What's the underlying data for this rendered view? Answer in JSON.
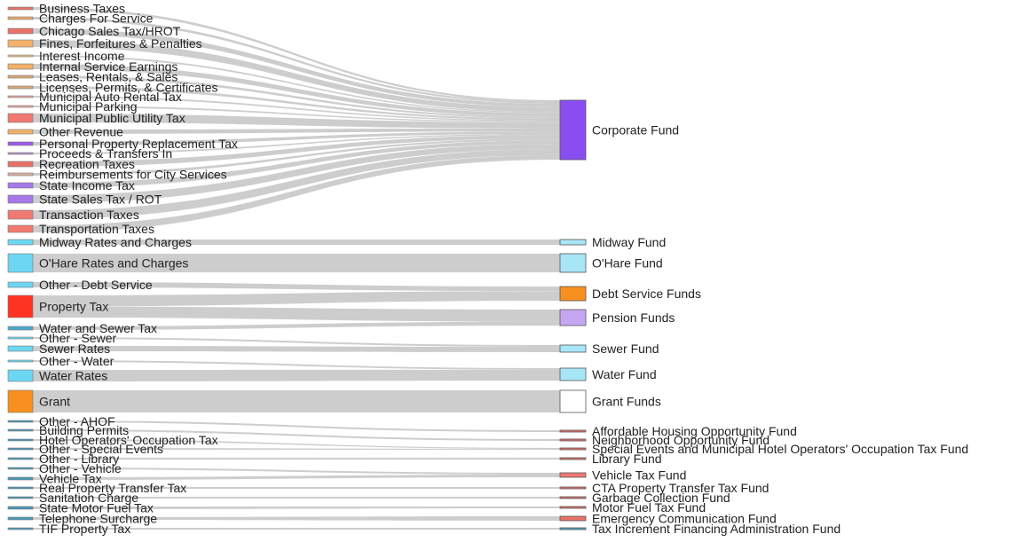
{
  "chart_data": {
    "type": "sankey",
    "title": "",
    "sources": [
      {
        "name": "Business Taxes",
        "color": "#e8726a"
      },
      {
        "name": "Charges For Service",
        "color": "#e8a86a"
      },
      {
        "name": "Chicago Sales Tax/HROT",
        "color": "#e8726a"
      },
      {
        "name": "Fines, Forfeitures & Penalties",
        "color": "#f2b26a"
      },
      {
        "name": "Interest Income",
        "color": "#e8c08a"
      },
      {
        "name": "Internal Service Earnings",
        "color": "#f2b26a"
      },
      {
        "name": "Leases, Rentals, & Sales",
        "color": "#d9a87a"
      },
      {
        "name": "Licenses, Permits, & Certificates",
        "color": "#d9a87a"
      },
      {
        "name": "Municipal Auto Rental Tax",
        "color": "#e8a8a0"
      },
      {
        "name": "Municipal Parking",
        "color": "#e8a8a0"
      },
      {
        "name": "Municipal Public Utility Tax",
        "color": "#f07a72"
      },
      {
        "name": "Other Revenue",
        "color": "#f2b26a"
      },
      {
        "name": "Personal Property Replacement Tax",
        "color": "#9a5ce8"
      },
      {
        "name": "Proceeds & Transfers In",
        "color": "#b090c8"
      },
      {
        "name": "Recreation Taxes",
        "color": "#e8726a"
      },
      {
        "name": "Reimbursements for City Services",
        "color": "#d9b0a0"
      },
      {
        "name": "State Income Tax",
        "color": "#a678e8"
      },
      {
        "name": "State Sales Tax / ROT",
        "color": "#a678e8"
      },
      {
        "name": "Transaction Taxes",
        "color": "#f07a72"
      },
      {
        "name": "Transportation Taxes",
        "color": "#f07a72"
      },
      {
        "name": "Midway Rates and Charges",
        "color": "#6dd6f2"
      },
      {
        "name": "O'Hare Rates and Charges",
        "color": "#6dd6f2"
      },
      {
        "name": "Other - Debt Service",
        "color": "#6dd6f2"
      },
      {
        "name": "Property Tax",
        "color": "#ff3322"
      },
      {
        "name": "Water and Sewer Tax",
        "color": "#4aa8c8"
      },
      {
        "name": "Other - Sewer",
        "color": "#6dd6f2"
      },
      {
        "name": "Sewer Rates",
        "color": "#6dd6f2"
      },
      {
        "name": "Other - Water",
        "color": "#6dd6f2"
      },
      {
        "name": "Water Rates",
        "color": "#6dd6f2"
      },
      {
        "name": "Grant",
        "color": "#f7901e"
      },
      {
        "name": "Other - AHOF",
        "color": "#4a98b8"
      },
      {
        "name": "Building Permits",
        "color": "#4a98b8"
      },
      {
        "name": "Hotel Operators' Occupation Tax",
        "color": "#4a98b8"
      },
      {
        "name": "Other - Special Events",
        "color": "#4a98b8"
      },
      {
        "name": "Other - Library",
        "color": "#4a98b8"
      },
      {
        "name": "Other - Vehicle",
        "color": "#4a98b8"
      },
      {
        "name": "Vehicle Tax",
        "color": "#4a98b8"
      },
      {
        "name": "Real Property Transfer Tax",
        "color": "#4a98b8"
      },
      {
        "name": "Sanitation Charge",
        "color": "#4a98b8"
      },
      {
        "name": "State Motor Fuel Tax",
        "color": "#4a98b8"
      },
      {
        "name": "Telephone Surcharge",
        "color": "#4a98b8"
      },
      {
        "name": "TIF Property Tax",
        "color": "#4a98b8"
      }
    ],
    "targets": [
      {
        "name": "Corporate Fund",
        "color": "#8a4ef0"
      },
      {
        "name": "Midway Fund",
        "color": "#a8e6f7"
      },
      {
        "name": "O'Hare Fund",
        "color": "#a8e6f7"
      },
      {
        "name": "Debt Service Funds",
        "color": "#f7901e"
      },
      {
        "name": "Pension Funds",
        "color": "#c4a6f2"
      },
      {
        "name": "Sewer Fund",
        "color": "#a8e6f7"
      },
      {
        "name": "Water Fund",
        "color": "#a8e6f7"
      },
      {
        "name": "Grant Funds",
        "color": "#ffffff"
      },
      {
        "name": "Affordable Housing Opportunity Fund",
        "color": "#e8726a"
      },
      {
        "name": "Neighborhood Opportunity Fund",
        "color": "#e8726a"
      },
      {
        "name": "Special Events and Municipal Hotel Operators' Occupation Tax Fund",
        "color": "#e8726a"
      },
      {
        "name": "Library Fund",
        "color": "#e8726a"
      },
      {
        "name": "Vehicle Tax Fund",
        "color": "#f07a72"
      },
      {
        "name": "CTA Property Transfer Tax Fund",
        "color": "#e8726a"
      },
      {
        "name": "Garbage Collection Fund",
        "color": "#e8726a"
      },
      {
        "name": "Motor Fuel Tax Fund",
        "color": "#e8726a"
      },
      {
        "name": "Emergency Communication Fund",
        "color": "#e8726a"
      },
      {
        "name": "Tax Increment Financing Administration Fund",
        "color": "#4aa8c8"
      }
    ],
    "links": [
      {
        "source": "Business Taxes",
        "target": "Corporate Fund"
      },
      {
        "source": "Charges For Service",
        "target": "Corporate Fund"
      },
      {
        "source": "Chicago Sales Tax/HROT",
        "target": "Corporate Fund"
      },
      {
        "source": "Fines, Forfeitures & Penalties",
        "target": "Corporate Fund"
      },
      {
        "source": "Interest Income",
        "target": "Corporate Fund"
      },
      {
        "source": "Internal Service Earnings",
        "target": "Corporate Fund"
      },
      {
        "source": "Leases, Rentals, & Sales",
        "target": "Corporate Fund"
      },
      {
        "source": "Licenses, Permits, & Certificates",
        "target": "Corporate Fund"
      },
      {
        "source": "Municipal Auto Rental Tax",
        "target": "Corporate Fund"
      },
      {
        "source": "Municipal Parking",
        "target": "Corporate Fund"
      },
      {
        "source": "Municipal Public Utility Tax",
        "target": "Corporate Fund"
      },
      {
        "source": "Other Revenue",
        "target": "Corporate Fund"
      },
      {
        "source": "Personal Property Replacement Tax",
        "target": "Corporate Fund"
      },
      {
        "source": "Proceeds & Transfers In",
        "target": "Corporate Fund"
      },
      {
        "source": "Recreation Taxes",
        "target": "Corporate Fund"
      },
      {
        "source": "Reimbursements for City Services",
        "target": "Corporate Fund"
      },
      {
        "source": "State Income Tax",
        "target": "Corporate Fund"
      },
      {
        "source": "State Sales Tax / ROT",
        "target": "Corporate Fund"
      },
      {
        "source": "Transaction Taxes",
        "target": "Corporate Fund"
      },
      {
        "source": "Transportation Taxes",
        "target": "Corporate Fund"
      },
      {
        "source": "Midway Rates and Charges",
        "target": "Midway Fund"
      },
      {
        "source": "O'Hare Rates and Charges",
        "target": "O'Hare Fund"
      },
      {
        "source": "Other - Debt Service",
        "target": "Debt Service Funds"
      },
      {
        "source": "Property Tax",
        "target": "Debt Service Funds"
      },
      {
        "source": "Property Tax",
        "target": "Pension Funds"
      },
      {
        "source": "Water and Sewer Tax",
        "target": "Pension Funds"
      },
      {
        "source": "Other - Sewer",
        "target": "Sewer Fund"
      },
      {
        "source": "Sewer Rates",
        "target": "Sewer Fund"
      },
      {
        "source": "Other - Water",
        "target": "Water Fund"
      },
      {
        "source": "Water Rates",
        "target": "Water Fund"
      },
      {
        "source": "Grant",
        "target": "Grant Funds"
      },
      {
        "source": "Other - AHOF",
        "target": "Affordable Housing Opportunity Fund"
      },
      {
        "source": "Building Permits",
        "target": "Neighborhood Opportunity Fund"
      },
      {
        "source": "Hotel Operators' Occupation Tax",
        "target": "Special Events and Municipal Hotel Operators' Occupation Tax Fund"
      },
      {
        "source": "Other - Special Events",
        "target": "Special Events and Municipal Hotel Operators' Occupation Tax Fund"
      },
      {
        "source": "Other - Library",
        "target": "Library Fund"
      },
      {
        "source": "Other - Vehicle",
        "target": "Vehicle Tax Fund"
      },
      {
        "source": "Vehicle Tax",
        "target": "Vehicle Tax Fund"
      },
      {
        "source": "Real Property Transfer Tax",
        "target": "CTA Property Transfer Tax Fund"
      },
      {
        "source": "Sanitation Charge",
        "target": "Garbage Collection Fund"
      },
      {
        "source": "State Motor Fuel Tax",
        "target": "Motor Fuel Tax Fund"
      },
      {
        "source": "Telephone Surcharge",
        "target": "Emergency Communication Fund"
      },
      {
        "source": "TIF Property Tax",
        "target": "Tax Increment Financing Administration Fund"
      }
    ]
  }
}
